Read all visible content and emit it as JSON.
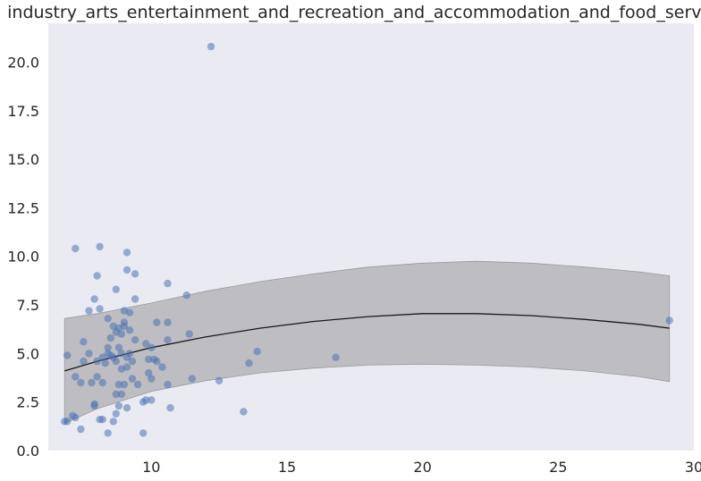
{
  "chart_data": {
    "type": "scatter",
    "title": "industry_arts_entertainment_and_recreation_and_accommodation_and_food_services",
    "xlabel": "",
    "ylabel": "",
    "xlim": [
      6.2,
      30.0
    ],
    "ylim": [
      0.0,
      22.0
    ],
    "x_ticks": [
      10,
      15,
      20,
      25,
      30
    ],
    "y_ticks": [
      0.0,
      2.5,
      5.0,
      7.5,
      10.0,
      12.5,
      15.0,
      17.5,
      20.0
    ],
    "grid": false,
    "colors": {
      "background": "#eaeaf2",
      "points": "#4c72b0",
      "band": "#a9a9ae",
      "fit_line": "#1a1a1a"
    },
    "points": [
      [
        12.2,
        20.8
      ],
      [
        7.2,
        10.4
      ],
      [
        8.1,
        10.5
      ],
      [
        9.1,
        10.2
      ],
      [
        9.1,
        9.3
      ],
      [
        8.0,
        9.0
      ],
      [
        9.4,
        9.1
      ],
      [
        10.6,
        8.6
      ],
      [
        8.7,
        8.3
      ],
      [
        11.3,
        8.0
      ],
      [
        7.9,
        7.8
      ],
      [
        9.4,
        7.8
      ],
      [
        7.7,
        7.2
      ],
      [
        8.1,
        7.3
      ],
      [
        9.0,
        7.2
      ],
      [
        9.2,
        7.1
      ],
      [
        8.4,
        6.8
      ],
      [
        9.0,
        6.6
      ],
      [
        10.2,
        6.6
      ],
      [
        10.6,
        6.6
      ],
      [
        8.6,
        6.4
      ],
      [
        8.8,
        6.3
      ],
      [
        9.0,
        6.4
      ],
      [
        8.7,
        6.1
      ],
      [
        9.2,
        6.2
      ],
      [
        8.9,
        6.0
      ],
      [
        11.4,
        6.0
      ],
      [
        8.5,
        5.8
      ],
      [
        9.4,
        5.7
      ],
      [
        10.6,
        5.7
      ],
      [
        7.5,
        5.6
      ],
      [
        9.8,
        5.5
      ],
      [
        8.4,
        5.3
      ],
      [
        8.8,
        5.3
      ],
      [
        10.0,
        5.3
      ],
      [
        13.9,
        5.1
      ],
      [
        7.7,
        5.0
      ],
      [
        8.4,
        5.0
      ],
      [
        8.9,
        5.0
      ],
      [
        9.2,
        5.0
      ],
      [
        6.9,
        4.9
      ],
      [
        8.5,
        4.9
      ],
      [
        8.2,
        4.8
      ],
      [
        8.6,
        4.8
      ],
      [
        9.1,
        4.8
      ],
      [
        16.8,
        4.8
      ],
      [
        9.9,
        4.7
      ],
      [
        8.0,
        4.6
      ],
      [
        8.7,
        4.6
      ],
      [
        9.3,
        4.6
      ],
      [
        10.1,
        4.7
      ],
      [
        10.2,
        4.6
      ],
      [
        7.5,
        4.6
      ],
      [
        8.3,
        4.5
      ],
      [
        13.6,
        4.5
      ],
      [
        9.1,
        4.3
      ],
      [
        10.4,
        4.3
      ],
      [
        8.9,
        4.2
      ],
      [
        9.9,
        4.0
      ],
      [
        7.2,
        3.8
      ],
      [
        8.0,
        3.8
      ],
      [
        9.3,
        3.7
      ],
      [
        10.0,
        3.7
      ],
      [
        11.5,
        3.7
      ],
      [
        7.4,
        3.5
      ],
      [
        7.8,
        3.5
      ],
      [
        8.2,
        3.5
      ],
      [
        8.8,
        3.4
      ],
      [
        9.0,
        3.4
      ],
      [
        9.5,
        3.4
      ],
      [
        10.6,
        3.4
      ],
      [
        12.5,
        3.6
      ],
      [
        8.7,
        2.9
      ],
      [
        8.9,
        2.9
      ],
      [
        9.8,
        2.6
      ],
      [
        10.0,
        2.6
      ],
      [
        9.7,
        2.5
      ],
      [
        7.9,
        2.4
      ],
      [
        7.9,
        2.3
      ],
      [
        8.8,
        2.3
      ],
      [
        9.1,
        2.2
      ],
      [
        10.7,
        2.2
      ],
      [
        13.4,
        2.0
      ],
      [
        8.7,
        1.9
      ],
      [
        7.1,
        1.8
      ],
      [
        7.2,
        1.7
      ],
      [
        8.1,
        1.6
      ],
      [
        8.2,
        1.6
      ],
      [
        8.6,
        1.5
      ],
      [
        6.8,
        1.5
      ],
      [
        6.9,
        1.5
      ],
      [
        7.4,
        1.1
      ],
      [
        8.4,
        0.9
      ],
      [
        9.7,
        0.9
      ],
      [
        29.1,
        6.7
      ]
    ],
    "fit": {
      "x": [
        6.8,
        8,
        10,
        12,
        14,
        16,
        18,
        20,
        22,
        24,
        26,
        28,
        29.1
      ],
      "y": [
        4.1,
        4.6,
        5.3,
        5.85,
        6.3,
        6.65,
        6.9,
        7.05,
        7.05,
        6.95,
        6.75,
        6.5,
        6.3
      ],
      "lower": [
        1.4,
        2.15,
        3.05,
        3.6,
        4.0,
        4.25,
        4.4,
        4.45,
        4.4,
        4.3,
        4.1,
        3.8,
        3.55
      ],
      "upper": [
        6.8,
        7.05,
        7.6,
        8.2,
        8.7,
        9.1,
        9.45,
        9.65,
        9.75,
        9.65,
        9.45,
        9.2,
        9.0
      ]
    }
  }
}
